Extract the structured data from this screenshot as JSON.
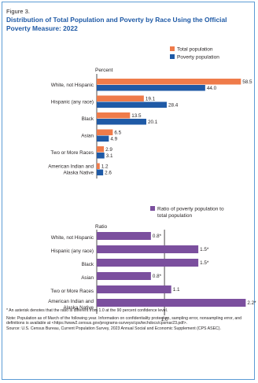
{
  "figure_label": "Figure 3.",
  "title": "Distribution of Total Population and Poverty by Race Using the Official Poverty Measure: 2022",
  "colors": {
    "total": "#ef7b4a",
    "poverty": "#1f5aa6",
    "ratio": "#7b4f9e",
    "title": "#1f5aa6",
    "frame": "#5b9bd5"
  },
  "chart_data": [
    {
      "type": "bar",
      "orientation": "horizontal",
      "ylabel": "Percent",
      "categories": [
        "White, not Hispanic",
        "Hispanic (any race)",
        "Black",
        "Asian",
        "Two or More Races",
        "American Indian and Alaska Native"
      ],
      "series": [
        {
          "name": "Total population",
          "values": [
            58.5,
            19.1,
            13.5,
            6.5,
            2.9,
            1.2
          ],
          "labels": [
            "58.5",
            "19.1",
            "13.5",
            "6.5",
            "2.9",
            "1.2"
          ]
        },
        {
          "name": "Poverty population",
          "values": [
            44.0,
            28.4,
            20.1,
            4.9,
            3.1,
            2.6
          ],
          "labels": [
            "44.0",
            "28.4",
            "20.1",
            "4.9",
            "3.1",
            "2.6"
          ]
        }
      ],
      "xlim": [
        0,
        60
      ],
      "legend_position": "top-right"
    },
    {
      "type": "bar",
      "orientation": "horizontal",
      "ylabel": "Ratio",
      "categories": [
        "White, not Hispanic",
        "Hispanic (any race)",
        "Black",
        "Asian",
        "Two or More Races",
        "American Indian and Alaska Native"
      ],
      "series": [
        {
          "name": "Ratio of poverty population to total population",
          "values": [
            0.8,
            1.5,
            1.5,
            0.8,
            1.1,
            2.2
          ],
          "labels": [
            "0.8*",
            "1.5*",
            "1.5*",
            "0.8*",
            "1.1",
            "2.2*"
          ]
        }
      ],
      "reference_line": {
        "value": 1.0,
        "label": "1.0"
      },
      "xlim": [
        0,
        2.3
      ],
      "legend_position": "top-right"
    }
  ],
  "notes": {
    "asterisk": "* An asterisk denotes that the ratio is different from 1.0 at the 90 percent confidence level.",
    "note": "Note: Population as of March of the following year. Information on confidentiality protection, sampling error, nonsampling error, and definitions is available at <https://www2.census.gov/programs-surveys/cps/techdocs/cpsmar23.pdf>.",
    "source": "Source: U.S. Census Bureau, Current Population Survey, 2023 Annual Social and Economic Supplement (CPS ASEC)."
  }
}
